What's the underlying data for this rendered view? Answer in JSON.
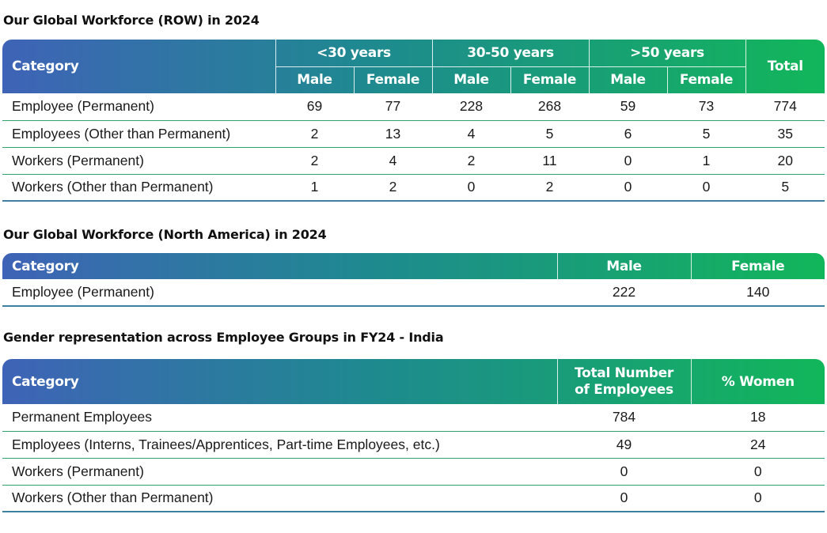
{
  "row_section": {
    "title": "Our Global Workforce (ROW) in 2024",
    "category_header": "Category",
    "age_groups": [
      "<30 years",
      "30-50 years",
      ">50 years"
    ],
    "male_label": "Male",
    "female_label": "Female",
    "total_header": "Total",
    "rows": [
      {
        "category": "Employee (Permanent)",
        "values": [
          "69",
          "77",
          "228",
          "268",
          "59",
          "73",
          "774"
        ]
      },
      {
        "category": "Employees (Other than Permanent)",
        "values": [
          "2",
          "13",
          "4",
          "5",
          "6",
          "5",
          "35"
        ]
      },
      {
        "category": "Workers (Permanent)",
        "values": [
          "2",
          "4",
          "2",
          "11",
          "0",
          "1",
          "20"
        ]
      },
      {
        "category": "Workers (Other than Permanent)",
        "values": [
          "1",
          "2",
          "0",
          "2",
          "0",
          "0",
          "5"
        ]
      }
    ]
  },
  "na_section": {
    "title": "Our Global Workforce (North America) in 2024",
    "category_header": "Category",
    "male_header": "Male",
    "female_header": "Female",
    "rows": [
      {
        "category": "Employee (Permanent)",
        "values": [
          "222",
          "140"
        ]
      }
    ]
  },
  "india_section": {
    "title": "Gender representation across Employee Groups in FY24 - India",
    "category_header": "Category",
    "total_header_line1": "Total Number",
    "total_header_line2": "of Employees",
    "women_header": "% Women",
    "rows": [
      {
        "category": "Permanent Employees",
        "values": [
          "784",
          "18"
        ]
      },
      {
        "category": "Employees (Interns, Trainees/Apprentices, Part-time Employees, etc.)",
        "values": [
          "49",
          "24"
        ]
      },
      {
        "category": "Workers (Permanent)",
        "values": [
          "0",
          "0"
        ]
      },
      {
        "category": "Workers (Other than Permanent)",
        "values": [
          "0",
          "0"
        ]
      }
    ]
  },
  "colors": {
    "header_gradient_start": "#3f63b7",
    "header_gradient_mid": "#1e8a8f",
    "header_gradient_end": "#12b65a",
    "row_divider": "#2fa36a"
  }
}
